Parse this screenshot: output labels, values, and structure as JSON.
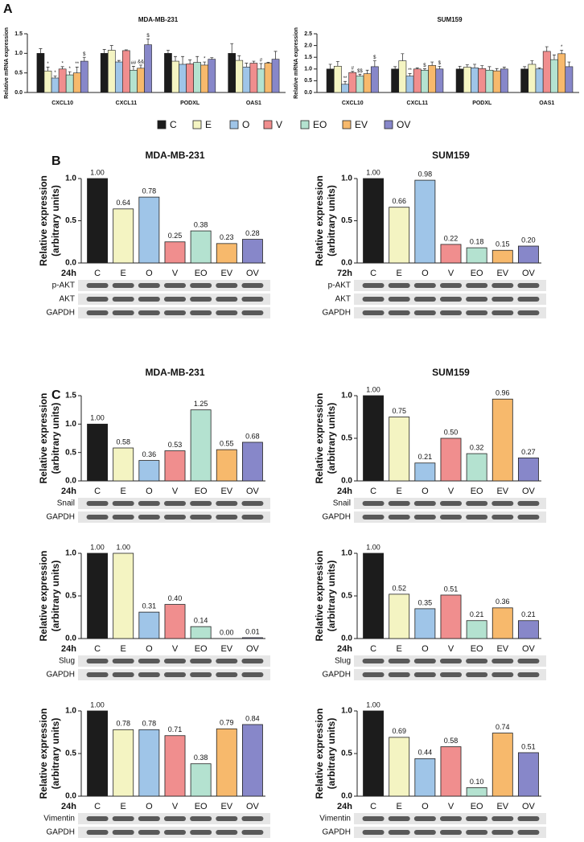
{
  "panel_labels": [
    "A",
    "B",
    "C"
  ],
  "legend": {
    "names": [
      "C",
      "E",
      "O",
      "V",
      "EO",
      "EV",
      "OV"
    ],
    "colors": [
      "#1c1c1c",
      "#f4f4c2",
      "#9fc5e8",
      "#f08e8e",
      "#b4e2d0",
      "#f7b96c",
      "#8787c9"
    ]
  },
  "chart_data": [
    {
      "type": "grouped_bar",
      "title": "MDA-MB-231",
      "ylabel": "Relative mRNA expression",
      "categories": [
        "CXCL10",
        "CXCL11",
        "PODXL",
        "OAS1"
      ],
      "ylim": [
        0,
        1.5
      ],
      "yticks": [
        {
          "value": 0,
          "label": "0.0"
        },
        0.5,
        {
          "value": 1,
          "label": "1.0"
        },
        1.5
      ],
      "series": [
        {
          "values": [
            1.0,
            1.0,
            1.0,
            1.0
          ],
          "errors": [
            0.12,
            0.1,
            0.08,
            0.25
          ],
          "annotations": [
            null,
            null,
            null,
            null
          ]
        },
        {
          "values": [
            0.55,
            1.08,
            0.8,
            0.82
          ],
          "errors": [
            0.1,
            0.12,
            0.12,
            0.12
          ],
          "annotations": [
            "*",
            null,
            null,
            null
          ]
        },
        {
          "values": [
            0.37,
            0.78,
            0.72,
            0.65
          ],
          "errors": [
            0.05,
            0.04,
            0.2,
            0.1
          ],
          "annotations": [
            "*",
            null,
            null,
            null
          ]
        },
        {
          "values": [
            0.6,
            1.07,
            0.73,
            0.75
          ],
          "errors": [
            0.06,
            0.02,
            0.1,
            0.05
          ],
          "annotations": [
            "*",
            null,
            null,
            null
          ]
        },
        {
          "values": [
            0.45,
            0.57,
            0.77,
            0.6
          ],
          "errors": [
            0.08,
            0.1,
            0.15,
            0.14
          ],
          "annotations": [
            "*",
            "##",
            null,
            "#"
          ]
        },
        {
          "values": [
            0.5,
            0.62,
            0.7,
            0.75
          ],
          "errors": [
            0.15,
            0.08,
            0.08,
            0.02
          ],
          "annotations": [
            "**",
            "&&",
            "*",
            null
          ]
        },
        {
          "values": [
            0.8,
            1.22,
            0.85,
            0.85
          ],
          "errors": [
            0.1,
            0.15,
            0.04,
            0.2
          ],
          "annotations": [
            "$",
            "$",
            null,
            null
          ]
        }
      ]
    },
    {
      "type": "grouped_bar",
      "title": "SUM159",
      "ylabel": "Relative mRNA expression",
      "categories": [
        "CXCL10",
        "CXCL11",
        "PODXL",
        "OAS1"
      ],
      "ylim": [
        0,
        2.5
      ],
      "yticks": [
        {
          "value": 0,
          "label": "0.0"
        },
        0.5,
        {
          "value": 1,
          "label": "1.0"
        },
        1.5,
        {
          "value": 2,
          "label": "2.0"
        },
        2.5
      ],
      "series": [
        {
          "values": [
            1.0,
            1.0,
            1.0,
            1.0
          ],
          "errors": [
            0.2,
            0.1,
            0.12,
            0.1
          ],
          "annotations": [
            null,
            null,
            null,
            null
          ]
        },
        {
          "values": [
            1.12,
            1.35,
            1.08,
            1.2
          ],
          "errors": [
            0.2,
            0.3,
            0.1,
            0.15
          ],
          "annotations": [
            null,
            null,
            null,
            null
          ]
        },
        {
          "values": [
            0.35,
            0.7,
            1.05,
            1.0
          ],
          "errors": [
            0.12,
            0.1,
            0.15,
            0.05
          ],
          "annotations": [
            "**",
            "**",
            null,
            null
          ]
        },
        {
          "values": [
            0.85,
            1.0,
            1.02,
            1.75
          ],
          "errors": [
            0.05,
            0.05,
            0.12,
            0.2
          ],
          "annotations": [
            "#",
            null,
            null,
            null
          ]
        },
        {
          "values": [
            0.7,
            0.95,
            0.95,
            1.4
          ],
          "errors": [
            0.08,
            0.06,
            0.15,
            0.2
          ],
          "annotations": [
            "$$",
            "$",
            null,
            null
          ]
        },
        {
          "values": [
            0.8,
            1.15,
            0.92,
            1.65
          ],
          "errors": [
            0.15,
            0.15,
            0.1,
            0.15
          ],
          "annotations": [
            null,
            null,
            null,
            "*"
          ]
        },
        {
          "values": [
            1.1,
            1.0,
            1.0,
            1.1
          ],
          "errors": [
            0.25,
            0.12,
            0.08,
            0.2
          ],
          "annotations": [
            "$",
            "$",
            null,
            null
          ]
        }
      ]
    },
    {
      "type": "bar",
      "title": "MDA-MB-231",
      "ylabel": [
        "Relative expression",
        "(arbitrary units)"
      ],
      "time": "24h",
      "categories": [
        "C",
        "E",
        "O",
        "V",
        "EO",
        "EV",
        "OV"
      ],
      "values": [
        1.0,
        0.64,
        0.78,
        0.25,
        0.38,
        0.23,
        0.28
      ],
      "value_labels": [
        "1.00",
        "0.64",
        "0.78",
        "0.25",
        "0.38",
        "0.23",
        "0.28"
      ],
      "ylim": [
        0,
        1
      ],
      "yticks": [
        {
          "value": 0,
          "label": "0.0"
        },
        0.5,
        {
          "value": 1,
          "label": "1.0"
        }
      ],
      "blots": [
        "p-AKT",
        "AKT",
        "GAPDH"
      ]
    },
    {
      "type": "bar",
      "title": "SUM159",
      "ylabel": [
        "Relative expression",
        "(arbitrary units)"
      ],
      "time": "72h",
      "categories": [
        "C",
        "E",
        "O",
        "V",
        "EO",
        "EV",
        "OV"
      ],
      "values": [
        1.0,
        0.66,
        0.98,
        0.22,
        0.18,
        0.15,
        0.2
      ],
      "value_labels": [
        "1.00",
        "0.66",
        "0.98",
        "0.22",
        "0.18",
        "0.15",
        "0.20"
      ],
      "ylim": [
        0,
        1
      ],
      "yticks": [
        {
          "value": 0,
          "label": "0.0"
        },
        0.5,
        {
          "value": 1,
          "label": "1.0"
        }
      ],
      "blots": [
        "p-AKT",
        "AKT",
        "GAPDH"
      ]
    },
    {
      "type": "bar",
      "title": "MDA-MB-231",
      "ylabel": [
        "Relative expression",
        "(arbitrary units)"
      ],
      "time": "24h",
      "categories": [
        "C",
        "E",
        "O",
        "V",
        "EO",
        "EV",
        "OV"
      ],
      "values": [
        1.0,
        0.58,
        0.36,
        0.53,
        1.25,
        0.55,
        0.68
      ],
      "value_labels": [
        "1.00",
        "0.58",
        "0.36",
        "0.53",
        "1.25",
        "0.55",
        "0.68"
      ],
      "ylim": [
        0,
        1.5
      ],
      "yticks": [
        {
          "value": 0,
          "label": "0.0"
        },
        0.5,
        {
          "value": 1,
          "label": "1.0"
        },
        1.5
      ],
      "blots": [
        "Snail",
        "GAPDH"
      ]
    },
    {
      "type": "bar",
      "title": "SUM159",
      "ylabel": [
        "Relative expression",
        "(arbitrary units)"
      ],
      "time": "24h",
      "categories": [
        "C",
        "E",
        "O",
        "V",
        "EO",
        "EV",
        "OV"
      ],
      "values": [
        1.0,
        0.75,
        0.21,
        0.5,
        0.32,
        0.96,
        0.27
      ],
      "value_labels": [
        "1.00",
        "0.75",
        "0.21",
        "0.50",
        "0.32",
        "0.96",
        "0.27"
      ],
      "ylim": [
        0,
        1
      ],
      "yticks": [
        {
          "value": 0,
          "label": "0.0"
        },
        0.5,
        {
          "value": 1,
          "label": "1.0"
        }
      ],
      "blots": [
        "Snail",
        "GAPDH"
      ]
    },
    {
      "type": "bar",
      "ylabel": [
        "Relative expression",
        "(arbitrary units)"
      ],
      "time": "24h",
      "categories": [
        "C",
        "E",
        "O",
        "V",
        "EO",
        "EV",
        "OV"
      ],
      "values": [
        1.0,
        1.0,
        0.31,
        0.4,
        0.14,
        0.0,
        0.01
      ],
      "value_labels": [
        "1.00",
        "1.00",
        "0.31",
        "0.40",
        "0.14",
        "0.00",
        "0.01"
      ],
      "ylim": [
        0,
        1
      ],
      "yticks": [
        {
          "value": 0,
          "label": "0.0"
        },
        0.5,
        {
          "value": 1,
          "label": "1.0"
        }
      ],
      "blots": [
        "Slug",
        "GAPDH"
      ]
    },
    {
      "type": "bar",
      "ylabel": [
        "Relative expression",
        "(arbitrary units)"
      ],
      "time": "24h",
      "categories": [
        "C",
        "E",
        "O",
        "V",
        "EO",
        "EV",
        "OV"
      ],
      "values": [
        1.0,
        0.52,
        0.35,
        0.51,
        0.21,
        0.36,
        0.21
      ],
      "value_labels": [
        "1.00",
        "0.52",
        "0.35",
        "0.51",
        "0.21",
        "0.36",
        "0.21"
      ],
      "ylim": [
        0,
        1
      ],
      "yticks": [
        {
          "value": 0,
          "label": "0.0"
        },
        0.5,
        {
          "value": 1,
          "label": "1.0"
        }
      ],
      "blots": [
        "Slug",
        "GAPDH"
      ]
    },
    {
      "type": "bar",
      "ylabel": [
        "Relative expression",
        "(arbitrary units)"
      ],
      "time": "24h",
      "categories": [
        "C",
        "E",
        "O",
        "V",
        "EO",
        "EV",
        "OV"
      ],
      "values": [
        1.0,
        0.78,
        0.78,
        0.71,
        0.38,
        0.79,
        0.84
      ],
      "value_labels": [
        "1.00",
        "0.78",
        "0.78",
        "0.71",
        "0.38",
        "0.79",
        "0.84"
      ],
      "ylim": [
        0,
        1
      ],
      "yticks": [
        {
          "value": 0,
          "label": "0.0"
        },
        0.5,
        {
          "value": 1,
          "label": "1.0"
        }
      ],
      "blots": [
        "Vimentin",
        "GAPDH"
      ]
    },
    {
      "type": "bar",
      "ylabel": [
        "Relative expression",
        "(arbitrary units)"
      ],
      "time": "24h",
      "categories": [
        "C",
        "E",
        "O",
        "V",
        "EO",
        "EV",
        "OV"
      ],
      "values": [
        1.0,
        0.69,
        0.44,
        0.58,
        0.1,
        0.74,
        0.51
      ],
      "value_labels": [
        "1.00",
        "0.69",
        "0.44",
        "0.58",
        "0.10",
        "0.74",
        "0.51"
      ],
      "ylim": [
        0,
        1
      ],
      "yticks": [
        {
          "value": 0,
          "label": "0.0"
        },
        0.5,
        {
          "value": 1,
          "label": "1.0"
        }
      ],
      "blots": [
        "Vimentin",
        "GAPDH"
      ]
    }
  ]
}
